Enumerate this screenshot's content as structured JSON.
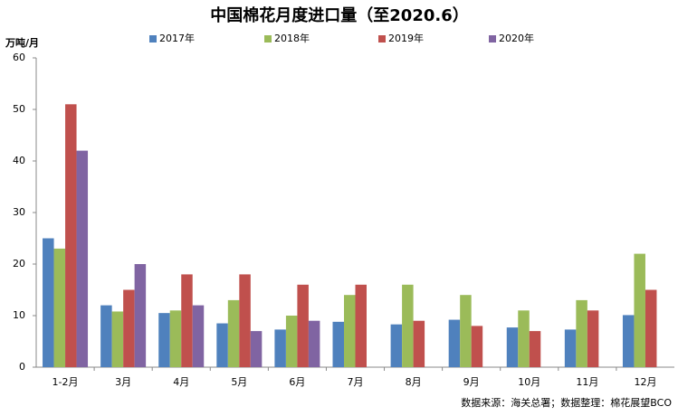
{
  "chart_data": {
    "type": "bar",
    "title": "中国棉花月度进口量（至2020.6）",
    "y_label": "万吨/月",
    "source": "数据来源：海关总署；数据整理：棉花展望BCO",
    "categories": [
      "1-2月",
      "3月",
      "4月",
      "5月",
      "6月",
      "7月",
      "8月",
      "9月",
      "10月",
      "11月",
      "12月"
    ],
    "series": [
      {
        "name": "2017年",
        "color": "#4f81bd",
        "values": [
          25,
          12,
          10.5,
          8.5,
          7.3,
          8.8,
          8.3,
          9.2,
          7.7,
          7.3,
          10.1
        ]
      },
      {
        "name": "2018年",
        "color": "#9bbb59",
        "values": [
          23,
          10.8,
          11,
          13,
          10,
          14,
          16,
          14,
          11,
          13,
          22
        ]
      },
      {
        "name": "2019年",
        "color": "#c0504d",
        "values": [
          51,
          15,
          18,
          18,
          16,
          16,
          9,
          8,
          7,
          11,
          15
        ]
      },
      {
        "name": "2020年",
        "color": "#8064a2",
        "values": [
          42,
          20,
          12,
          7,
          9,
          null,
          null,
          null,
          null,
          null,
          null
        ]
      }
    ],
    "ylim": [
      0,
      60
    ],
    "yticks": [
      0,
      10,
      20,
      30,
      40,
      50,
      60
    ],
    "grid": false
  }
}
